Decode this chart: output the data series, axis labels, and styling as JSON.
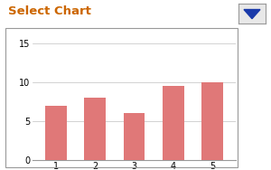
{
  "categories": [
    "1",
    "2",
    "3",
    "4",
    "5"
  ],
  "values": [
    7,
    8,
    6,
    9.5,
    10
  ],
  "bar_color": "#E07878",
  "title": "Select Chart",
  "title_fontsize": 9.5,
  "title_color": "#cc6600",
  "title_bold": true,
  "ylim": [
    0,
    16
  ],
  "yticks": [
    0,
    5,
    10,
    15
  ],
  "background_color": "#ffffff",
  "chart_bg": "#ffffff",
  "outer_bg": "#ffffff",
  "bar_width": 0.55,
  "grid_color": "#c0c0c0",
  "tick_fontsize": 7,
  "border_color": "#999999",
  "btn_bg": "#e8e8e8",
  "btn_border": "#999999",
  "btn_triangle": "#1a3aaa"
}
